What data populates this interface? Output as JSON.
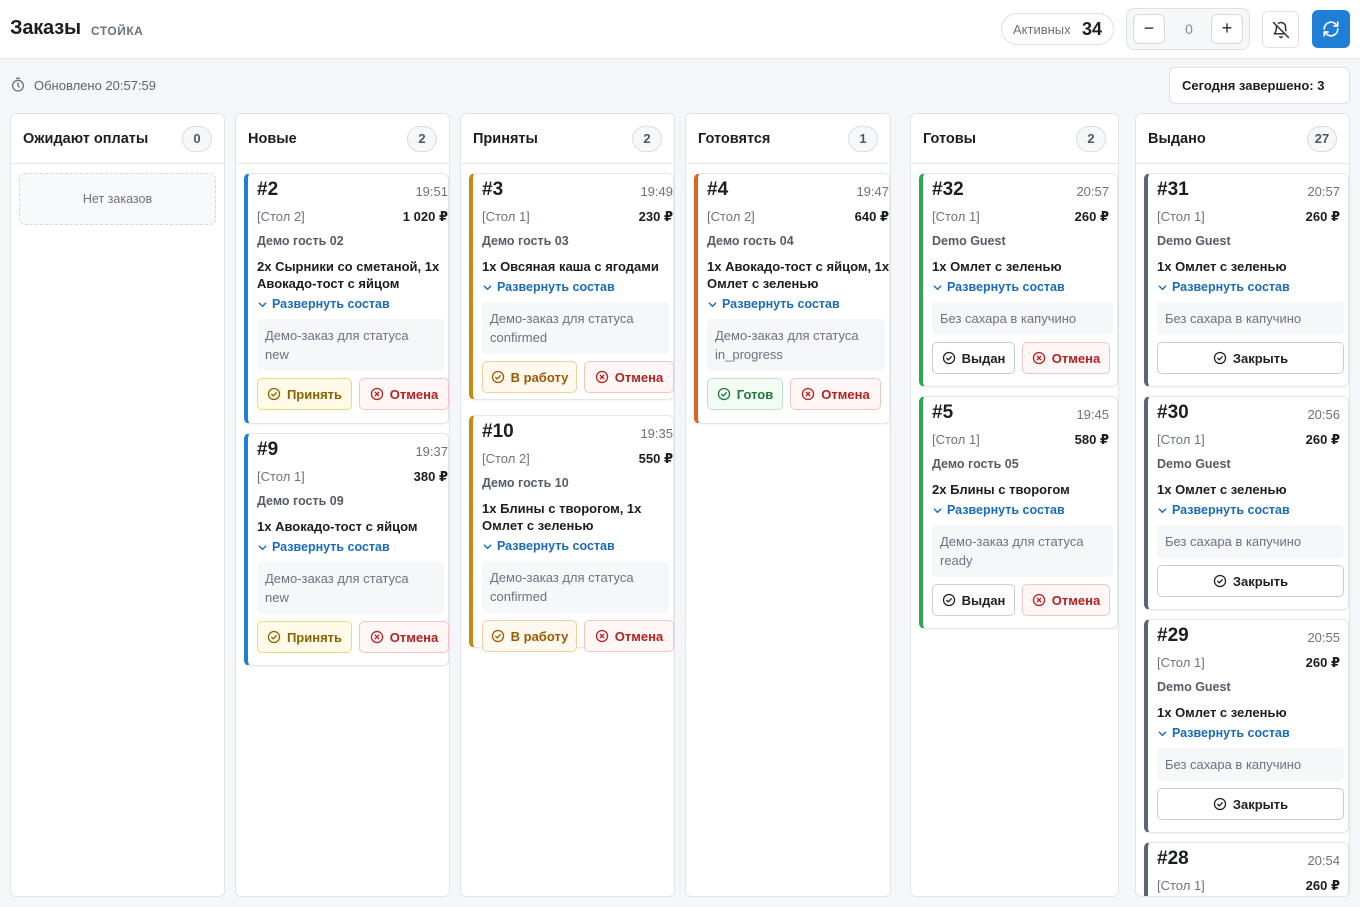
{
  "header": {
    "title": "Заказы",
    "subtitle": "СТОЙКА",
    "active_label": "Активных",
    "active_count": "34",
    "stepper_value": "0",
    "minus": "−",
    "plus": "+"
  },
  "status": {
    "updated": "Обновлено 20:57:59",
    "done_today": "Сегодня завершено:  3"
  },
  "labels": {
    "expand": "Развернуть состав",
    "empty": "Нет заказов"
  },
  "columns": [
    {
      "title": "Ожидают оплаты",
      "count": "0",
      "cards": []
    },
    {
      "title": "Новые",
      "count": "2",
      "cards": [
        {
          "num": "#2",
          "time": "19:51",
          "table": "[Стол 2]",
          "price": "1 020 ₽",
          "guest": "Демо гость 02",
          "items": "2x Сырники со сметаной, 1x Авокадо-тост с яйцом",
          "note": "Демо-заказ для статуса new",
          "primary": "Принять",
          "secondary": "Отмена"
        },
        {
          "num": "#9",
          "time": "19:37",
          "table": "[Стол 1]",
          "price": "380 ₽",
          "guest": "Демо гость 09",
          "items": "1x Авокадо-тост с яйцом",
          "note": "Демо-заказ для статуса new",
          "primary": "Принять",
          "secondary": "Отмена"
        }
      ]
    },
    {
      "title": "Приняты",
      "count": "2",
      "cards": [
        {
          "num": "#3",
          "time": "19:49",
          "table": "[Стол 1]",
          "price": "230 ₽",
          "guest": "Демо гость 03",
          "items": "1x Овсяная каша с ягодами",
          "note": "Демо-заказ для статуса confirmed",
          "primary": "В работу",
          "secondary": "Отмена"
        },
        {
          "num": "#10",
          "time": "19:35",
          "table": "[Стол 2]",
          "price": "550 ₽",
          "guest": "Демо гость 10",
          "items": "1x Блины с творогом, 1x Омлет с зеленью",
          "note": "Демо-заказ для статуса confirmed",
          "primary": "В работу",
          "secondary": "Отмена"
        }
      ]
    },
    {
      "title": "Готовятся",
      "count": "1",
      "cards": [
        {
          "num": "#4",
          "time": "19:47",
          "table": "[Стол 2]",
          "price": "640 ₽",
          "guest": "Демо гость 04",
          "items": "1x Авокадо-тост с яйцом, 1x Омлет с зеленью",
          "note": "Демо-заказ для статуса in_progress",
          "primary": "Готов",
          "secondary": "Отмена"
        }
      ]
    },
    {
      "title": "Готовы",
      "count": "2",
      "cards": [
        {
          "num": "#32",
          "time": "20:57",
          "table": "[Стол 1]",
          "price": "260 ₽",
          "guest": "Demo Guest",
          "items": "1x Омлет с зеленью",
          "note": "Без сахара в капучино",
          "primary": "Выдан",
          "secondary": "Отмена"
        },
        {
          "num": "#5",
          "time": "19:45",
          "table": "[Стол 1]",
          "price": "580 ₽",
          "guest": "Демо гость 05",
          "items": "2x Блины с творогом",
          "note": "Демо-заказ для статуса ready",
          "primary": "Выдан",
          "secondary": "Отмена"
        }
      ]
    },
    {
      "title": "Выдано",
      "count": "27",
      "cards": [
        {
          "num": "#31",
          "time": "20:57",
          "table": "[Стол 1]",
          "price": "260 ₽",
          "guest": "Demo Guest",
          "items": "1x Омлет с зеленью",
          "note": "Без сахара в капучино",
          "primary": "Закрыть"
        },
        {
          "num": "#30",
          "time": "20:56",
          "table": "[Стол 1]",
          "price": "260 ₽",
          "guest": "Demo Guest",
          "items": "1x Омлет с зеленью",
          "note": "Без сахара в капучино",
          "primary": "Закрыть"
        },
        {
          "num": "#29",
          "time": "20:55",
          "table": "[Стол 1]",
          "price": "260 ₽",
          "guest": "Demo Guest",
          "items": "1x Омлет с зеленью",
          "note": "Без сахара в капучино",
          "primary": "Закрыть"
        },
        {
          "num": "#28",
          "time": "20:54",
          "table": "[Стол 1]",
          "price": "260 ₽"
        }
      ]
    }
  ],
  "colors": {
    "new": "#1f7fd6",
    "confirmed": "#c98a10",
    "in_progress": "#e0641e",
    "ready": "#2ea84f",
    "issued": "#5b6574",
    "accent": "#1f7fd6"
  }
}
